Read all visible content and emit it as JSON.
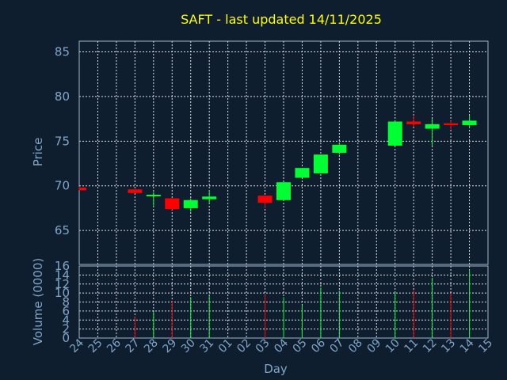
{
  "chart_data": {
    "type": "candlestick",
    "title": "SAFT - last updated 14/11/2025",
    "xlabel": "Day",
    "ylabel": "Price",
    "volume_label": "Volume (0000)",
    "grid": true,
    "price_ylim": [
      61.2,
      86.2
    ],
    "price_ticks": [
      65,
      70,
      75,
      80,
      85
    ],
    "volume_ylim": [
      0,
      16
    ],
    "volume_ticks": [
      0,
      2,
      4,
      6,
      8,
      10,
      12,
      14,
      16
    ],
    "up_color": "#00ff33",
    "down_color": "#ff0000",
    "days": [
      "24",
      "25",
      "26",
      "27",
      "28",
      "29",
      "30",
      "31",
      "01",
      "02",
      "03",
      "04",
      "05",
      "06",
      "07",
      "08",
      "09",
      "10",
      "11",
      "12",
      "13",
      "14",
      "15"
    ],
    "candles": [
      {
        "day": "24",
        "open": 69.8,
        "high": 69.9,
        "low": 69.5,
        "close": 69.5,
        "volume": 0
      },
      {
        "day": "27",
        "open": 69.6,
        "high": 69.6,
        "low": 69.2,
        "close": 69.2,
        "volume": 4.8
      },
      {
        "day": "28",
        "open": 68.9,
        "high": 69.3,
        "low": 67.7,
        "close": 69.0,
        "volume": 5.8
      },
      {
        "day": "29",
        "open": 68.6,
        "high": 68.6,
        "low": 67.3,
        "close": 67.4,
        "volume": 8.2
      },
      {
        "day": "30",
        "open": 67.5,
        "high": 68.6,
        "low": 67.1,
        "close": 68.4,
        "volume": 9.1
      },
      {
        "day": "31",
        "open": 68.5,
        "high": 69.5,
        "low": 68.0,
        "close": 68.8,
        "volume": 9.4
      },
      {
        "day": "03",
        "open": 68.9,
        "high": 68.9,
        "low": 67.5,
        "close": 68.1,
        "volume": 9.6
      },
      {
        "day": "04",
        "open": 68.4,
        "high": 70.4,
        "low": 68.4,
        "close": 70.4,
        "volume": 9.1
      },
      {
        "day": "05",
        "open": 70.9,
        "high": 72.0,
        "low": 70.9,
        "close": 72.0,
        "volume": 7.3
      },
      {
        "day": "06",
        "open": 71.4,
        "high": 73.5,
        "low": 71.4,
        "close": 73.5,
        "volume": 11.2
      },
      {
        "day": "07",
        "open": 73.7,
        "high": 74.8,
        "low": 73.5,
        "close": 74.6,
        "volume": 10.5
      },
      {
        "day": "10",
        "open": 74.5,
        "high": 77.3,
        "low": 74.5,
        "close": 77.2,
        "volume": 10.1
      },
      {
        "day": "11",
        "open": 77.2,
        "high": 77.9,
        "low": 76.6,
        "close": 76.9,
        "volume": 10.6
      },
      {
        "day": "12",
        "open": 76.4,
        "high": 77.5,
        "low": 74.5,
        "close": 76.9,
        "volume": 13.4
      },
      {
        "day": "13",
        "open": 77.0,
        "high": 77.3,
        "low": 76.3,
        "close": 76.8,
        "volume": 10.0
      },
      {
        "day": "14",
        "open": 76.8,
        "high": 77.9,
        "low": 76.5,
        "close": 77.3,
        "volume": 15.1
      }
    ]
  }
}
